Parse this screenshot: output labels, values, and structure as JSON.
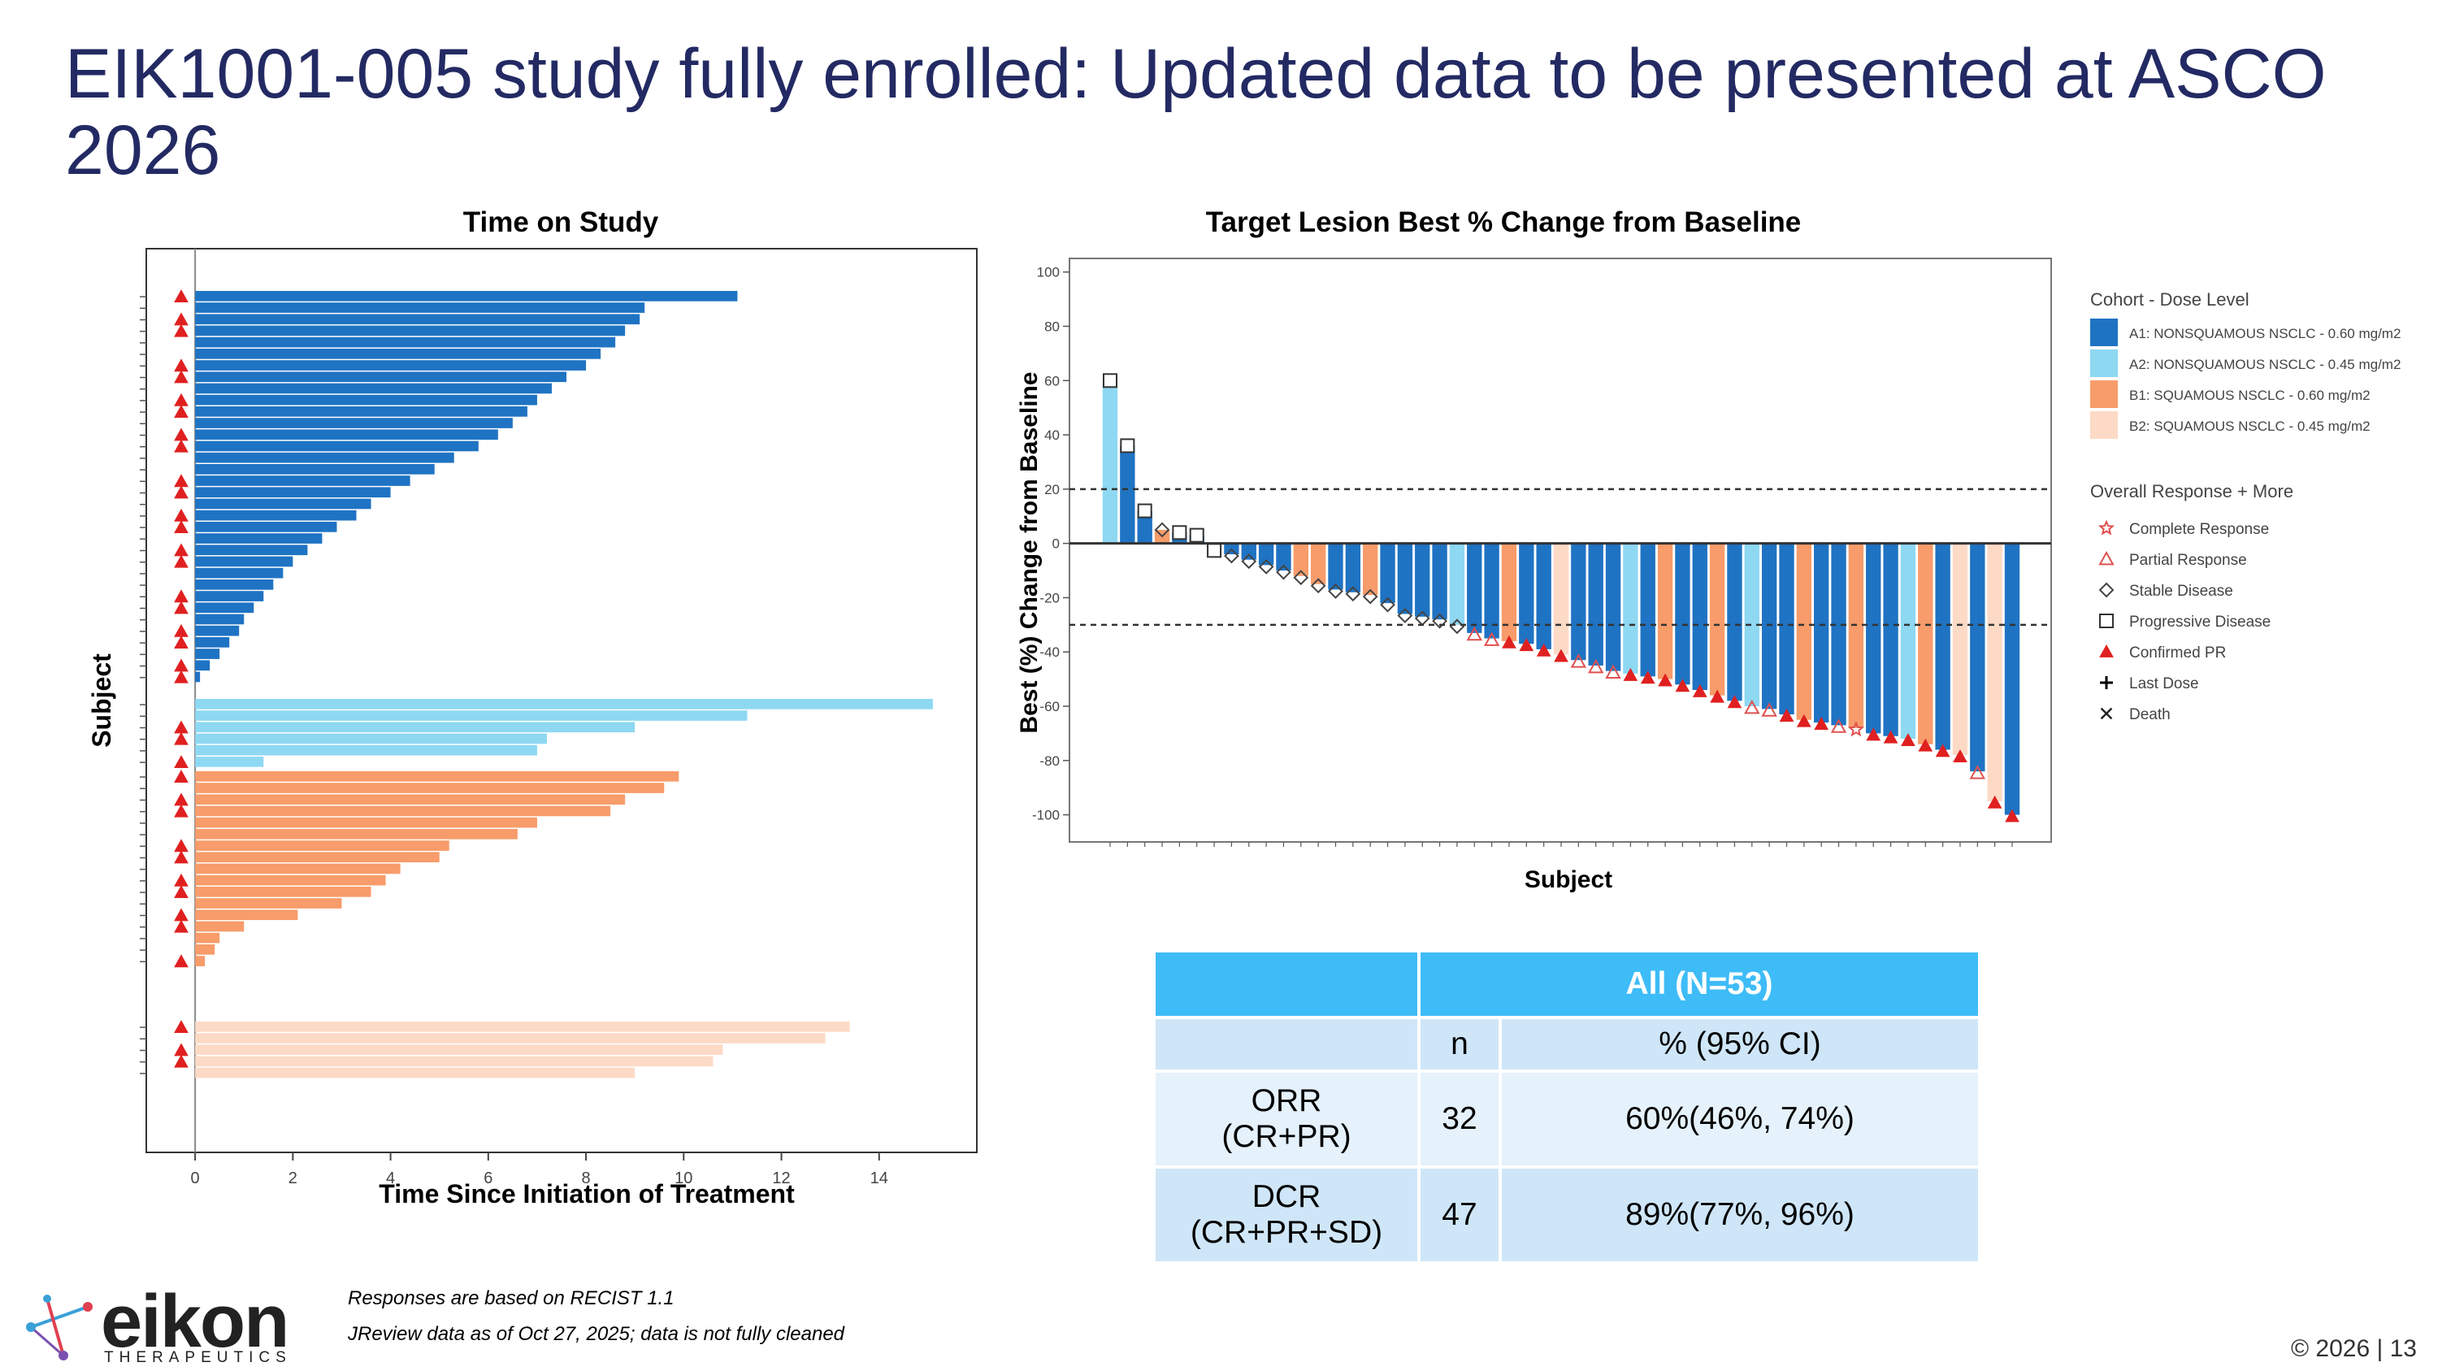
{
  "slide": {
    "title": "EIK1001-005 study fully enrolled: Updated data to be presented at ASCO 2026",
    "footnotes": [
      "Responses are based on RECIST 1.1",
      "JReview  data as of  Oct 27, 2025; data is not fully cleaned"
    ],
    "logo": {
      "word": "eikon",
      "sub": "THERAPEUTICS"
    },
    "copyright": "© 2026 | 13"
  },
  "colors": {
    "A1": "#1f73c3",
    "A2": "#8ed8f2",
    "B1": "#f79c6a",
    "B2": "#fcdac6",
    "response_red": "#e02020",
    "title": "#232a63"
  },
  "chart_data": [
    {
      "type": "bar",
      "orientation": "horizontal",
      "title": "Time on Study",
      "xlabel": "Time Since Initiation of Treatment",
      "ylabel": "Subject",
      "xlim": [
        -1,
        16
      ],
      "xticks": [
        0,
        2,
        4,
        6,
        8,
        10,
        12,
        14
      ],
      "series": [
        {
          "name": "A1",
          "values": [
            11.1,
            9.2,
            9.1,
            8.8,
            8.6,
            8.3,
            8.0,
            7.6,
            7.3,
            7.0,
            6.8,
            6.5,
            6.2,
            5.8,
            5.3,
            4.9,
            4.4,
            4.0,
            3.6,
            3.3,
            2.9,
            2.6,
            2.3,
            2.0,
            1.8,
            1.6,
            1.4,
            1.2,
            1.0,
            0.9,
            0.7,
            0.5,
            0.3,
            0.1
          ]
        },
        {
          "name": "A2",
          "values": [
            15.1,
            11.3,
            9.0,
            7.2,
            7.0,
            1.4
          ]
        },
        {
          "name": "B1",
          "values": [
            9.9,
            9.6,
            8.8,
            8.5,
            7.0,
            6.6,
            5.2,
            5.0,
            4.2,
            3.9,
            3.6,
            3.0,
            2.1,
            1.0,
            0.5,
            0.4,
            0.2
          ]
        },
        {
          "name": "B2",
          "values": [
            13.4,
            12.9,
            10.8,
            10.6,
            9.0
          ]
        }
      ]
    },
    {
      "type": "bar",
      "title": "Target Lesion Best % Change from Baseline",
      "xlabel": "Subject",
      "ylabel": "Best (%) Change from Baseline",
      "ylim": [
        -110,
        105
      ],
      "yticks": [
        100,
        80,
        60,
        40,
        20,
        0,
        -20,
        -40,
        -60,
        -80,
        -100
      ],
      "reference_lines": [
        20,
        -30
      ],
      "legend_placement": "right",
      "legend": {
        "cohort_title": "Cohort - Dose Level",
        "cohorts": [
          {
            "key": "A1",
            "label": "A1: NONSQUAMOUS NSCLC - 0.60 mg/m2"
          },
          {
            "key": "A2",
            "label": "A2: NONSQUAMOUS NSCLC - 0.45 mg/m2"
          },
          {
            "key": "B1",
            "label": "B1: SQUAMOUS NSCLC - 0.60 mg/m2"
          },
          {
            "key": "B2",
            "label": "B2: SQUAMOUS NSCLC - 0.45 mg/m2"
          }
        ],
        "response_title": "Overall Response + More",
        "responses": [
          {
            "sym": "star",
            "label": "Complete Response"
          },
          {
            "sym": "tri",
            "label": "Partial Response"
          },
          {
            "sym": "diamond",
            "label": "Stable Disease"
          },
          {
            "sym": "square",
            "label": "Progressive Disease"
          },
          {
            "sym": "tri-filled",
            "label": "Confirmed PR"
          },
          {
            "sym": "plus",
            "label": "Last Dose"
          },
          {
            "sym": "x",
            "label": "Death"
          }
        ]
      },
      "cohort": [
        "A2",
        "A1",
        "A1",
        "B1",
        "A1",
        "A1",
        "B2",
        "A1",
        "A1",
        "A1",
        "A1",
        "B1",
        "B1",
        "A1",
        "A1",
        "B1",
        "A1",
        "A1",
        "A1",
        "A1",
        "A2",
        "A1",
        "A1",
        "B1",
        "A1",
        "A1",
        "B2",
        "A1",
        "A1",
        "A1",
        "A2",
        "A1",
        "B1",
        "A1",
        "A1",
        "B1",
        "A1",
        "A2",
        "A1",
        "A1",
        "B1",
        "A1",
        "A1",
        "B1",
        "A1",
        "A1",
        "A2",
        "B1",
        "A1",
        "B2",
        "A1",
        "B2",
        "A1"
      ],
      "values": [
        60,
        36,
        12,
        5,
        4,
        3,
        -2,
        -4,
        -6,
        -8,
        -10,
        -12,
        -15,
        -17,
        -18,
        -19,
        -22,
        -26,
        -27,
        -28,
        -30,
        -33,
        -35,
        -36,
        -37,
        -39,
        -41,
        -43,
        -45,
        -47,
        -48,
        -49,
        -50,
        -52,
        -54,
        -56,
        -58,
        -60,
        -61,
        -63,
        -65,
        -66,
        -67,
        -68,
        -70,
        -71,
        -72,
        -74,
        -76,
        -78,
        -84,
        -95,
        -100
      ],
      "response": [
        "square",
        "square",
        "square",
        "diamond",
        "square",
        "square",
        "square",
        "diamond",
        "diamond",
        "diamond",
        "diamond",
        "diamond",
        "diamond",
        "diamond",
        "diamond",
        "diamond",
        "diamond",
        "diamond",
        "diamond",
        "diamond",
        "diamond",
        "tri",
        "tri",
        "tri-filled",
        "tri-filled",
        "tri-filled",
        "tri-filled",
        "tri",
        "tri",
        "tri",
        "tri-filled",
        "tri-filled",
        "tri-filled",
        "tri-filled",
        "tri-filled",
        "tri-filled",
        "tri-filled",
        "tri",
        "tri",
        "tri-filled",
        "tri-filled",
        "tri-filled",
        "tri",
        "star",
        "tri-filled",
        "tri-filled",
        "tri-filled",
        "tri-filled",
        "tri-filled",
        "tri-filled",
        "tri",
        "tri-filled",
        "tri-filled"
      ]
    },
    {
      "type": "table",
      "header": "All (N=53)",
      "columns": [
        "",
        "n",
        "%  (95% CI)"
      ],
      "rows": [
        {
          "label_1": "ORR",
          "label_2": "(CR+PR)",
          "n": "32",
          "pct": "60%(46%, 74%)"
        },
        {
          "label_1": "DCR",
          "label_2": "(CR+PR+SD)",
          "n": "47",
          "pct": "89%(77%, 96%)"
        }
      ]
    }
  ]
}
